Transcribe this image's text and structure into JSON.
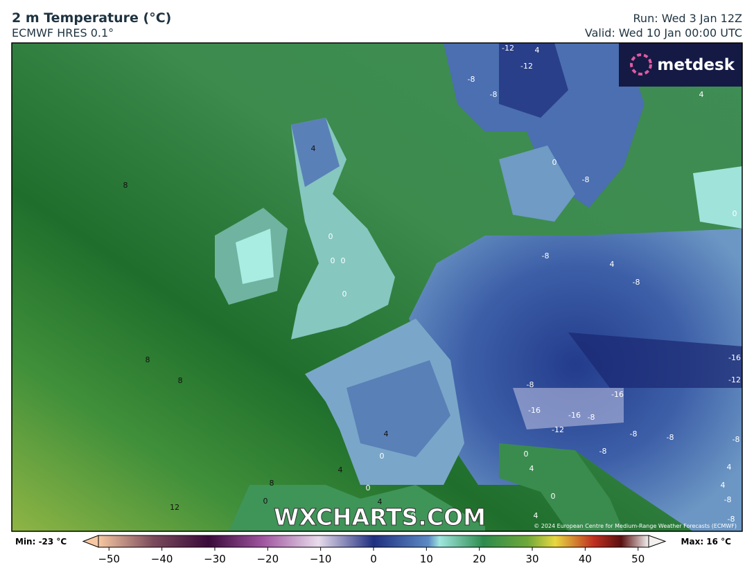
{
  "header": {
    "title": "2 m Temperature (°C)",
    "subtitle": "ECMWF HRES 0.1°",
    "run": "Run: Wed 3 Jan 12Z",
    "valid": "Valid: Wed 10 Jan 00:00 UTC"
  },
  "logo": "metdesk",
  "watermark": "WXCHARTS.COM",
  "copyright": "© 2024 European Centre for Medium-Range Weather Forecasts (ECMWF)",
  "contour_labels": [
    -12,
    4,
    -12,
    -8,
    -8,
    4,
    4,
    8,
    0,
    -8,
    0,
    0,
    0,
    0,
    -8,
    4,
    -8,
    0,
    8,
    8,
    -16,
    -12,
    -8,
    -16,
    -16,
    -16,
    -8,
    -12,
    4,
    -8,
    -8,
    -8,
    0,
    0,
    -8,
    4,
    4,
    4,
    8,
    4,
    0,
    12,
    0,
    4,
    0,
    -8,
    -8,
    4,
    0
  ],
  "colorbar": {
    "min_label": "Min: -23 °C",
    "max_label": "Max: 16 °C",
    "lim": [
      -52,
      52
    ],
    "ticks": [
      {
        "value": -50,
        "label": "−50"
      },
      {
        "value": -40,
        "label": "−40"
      },
      {
        "value": -30,
        "label": "−30"
      },
      {
        "value": -20,
        "label": "−20"
      },
      {
        "value": -10,
        "label": "−10"
      },
      0,
      10,
      20,
      30,
      40,
      50
    ]
  }
}
